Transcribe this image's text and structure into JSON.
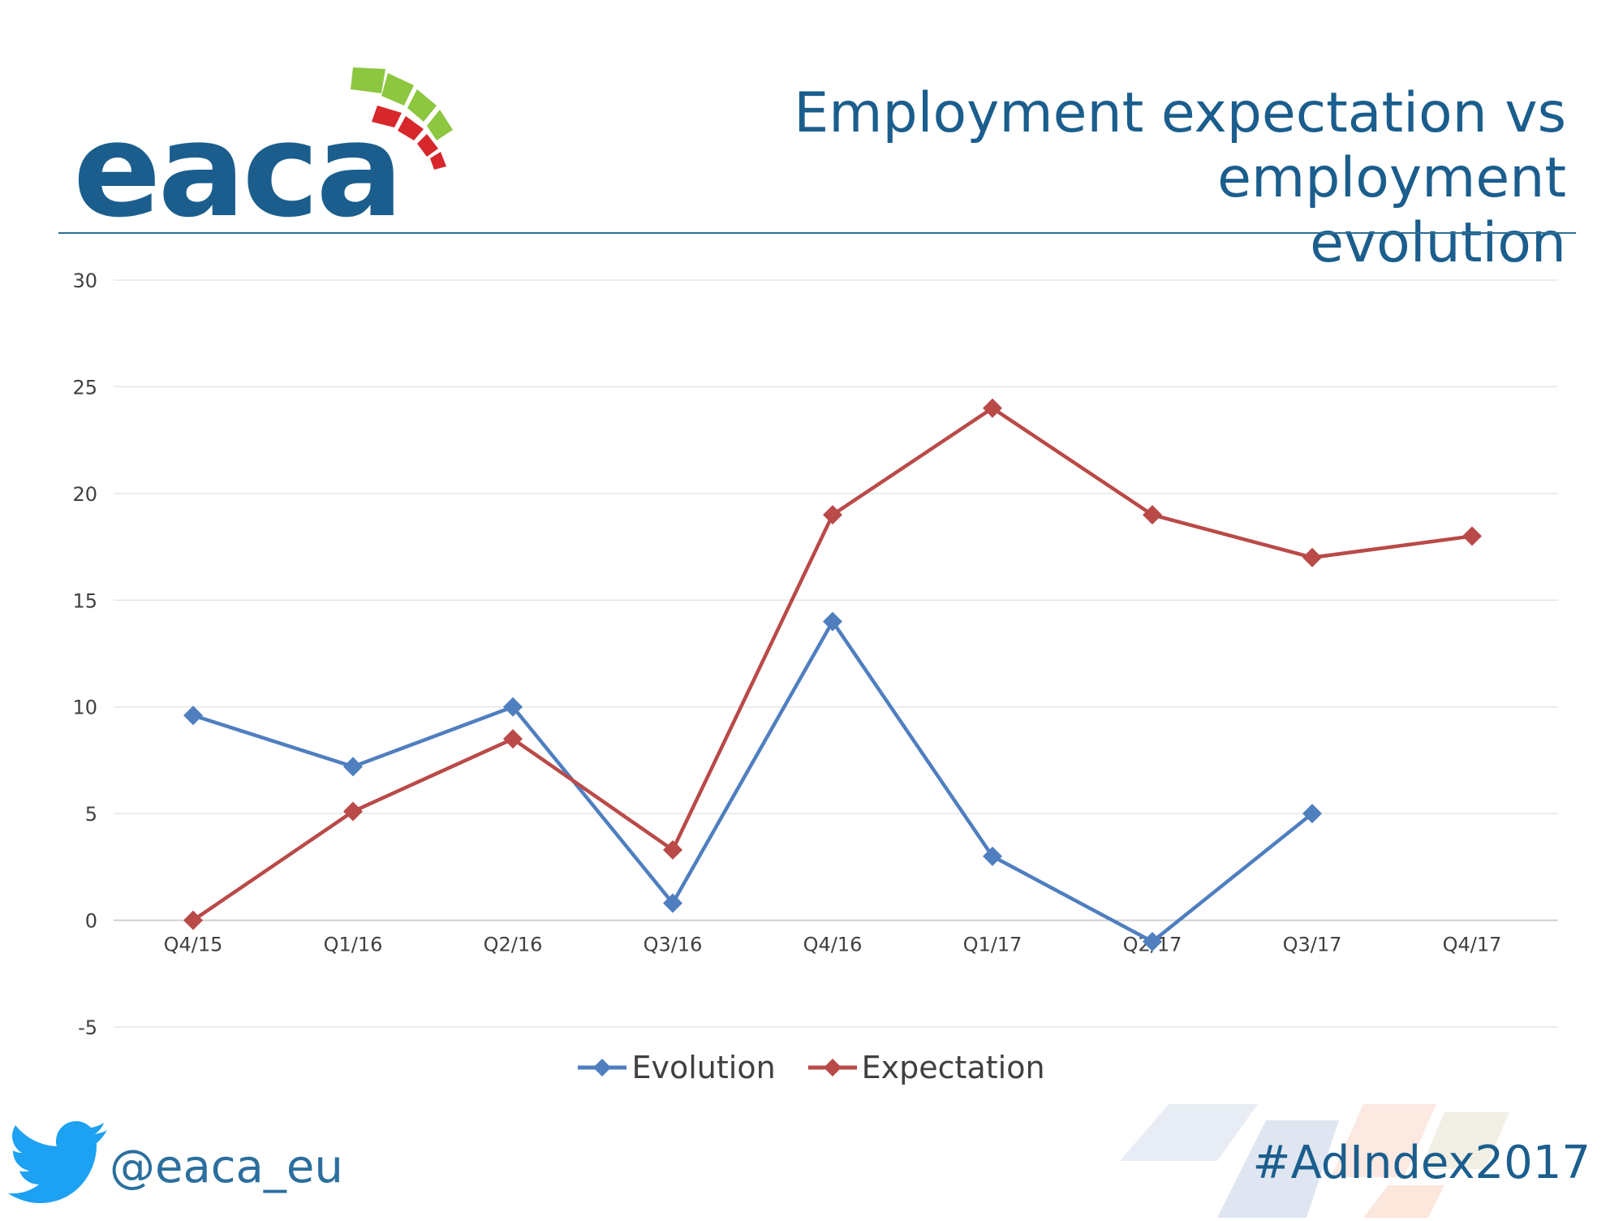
{
  "header": {
    "logo_text": "eaca",
    "title_line1": "Employment expectation vs employment",
    "title_line2": "evolution"
  },
  "footer": {
    "twitter_handle": "@eaca_eu",
    "hashtag": "#AdIndex2017"
  },
  "colors": {
    "brand_blue": "#1b5e8d",
    "evolution": "#4f7fbf",
    "expectation": "#b94a48",
    "grid": "#e6e6e6"
  },
  "icons": [
    "eaca-logo",
    "twitter-bird-icon",
    "diamond-marker-icon"
  ],
  "chart_data": {
    "type": "line",
    "title": "",
    "xlabel": "",
    "ylabel": "",
    "categories": [
      "Q4/15",
      "Q1/16",
      "Q2/16",
      "Q3/16",
      "Q4/16",
      "Q1/17",
      "Q2/17",
      "Q3/17",
      "Q4/17"
    ],
    "ylim": [
      -5,
      30
    ],
    "yticks": [
      -5,
      0,
      5,
      10,
      15,
      20,
      25,
      30
    ],
    "grid": true,
    "legend_position": "bottom",
    "series": [
      {
        "name": "Evolution",
        "values": [
          9.6,
          7.2,
          10,
          0.8,
          14,
          3,
          -1,
          5,
          null
        ],
        "color": "#4f7fbf"
      },
      {
        "name": "Expectation",
        "values": [
          0,
          5.1,
          8.5,
          3.3,
          19,
          24,
          19,
          17,
          18
        ],
        "color": "#b94a48"
      }
    ]
  }
}
